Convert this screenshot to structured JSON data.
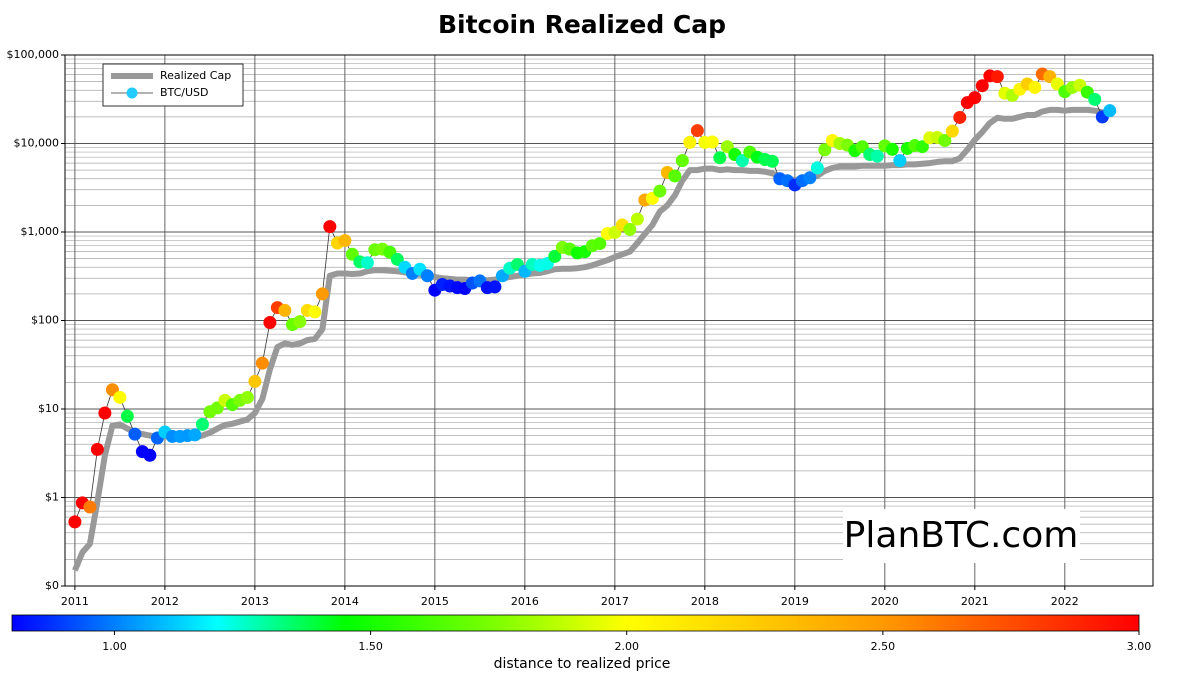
{
  "chart_data": {
    "type": "line",
    "title": "Bitcoin Realized Cap",
    "xlim": [
      2010.89,
      2022.98
    ],
    "xticks": [
      2011,
      2012,
      2013,
      2014,
      2015,
      2016,
      2017,
      2018,
      2019,
      2020,
      2021,
      2022
    ],
    "ylim": [
      0.1,
      100000
    ],
    "yscale": "log",
    "yticks": [
      {
        "value": 0.1,
        "label": "$0"
      },
      {
        "value": 1,
        "label": "$1"
      },
      {
        "value": 10,
        "label": "$10"
      },
      {
        "value": 100,
        "label": "$100"
      },
      {
        "value": 1000,
        "label": "$1,000"
      },
      {
        "value": 10000,
        "label": "$10,000"
      },
      {
        "value": 100000,
        "label": "$100,000"
      }
    ],
    "grid": true,
    "legend": "upper left",
    "watermark": "PlanBTC.com",
    "x": [
      2011,
      2011.083,
      2011.167,
      2011.25,
      2011.333,
      2011.417,
      2011.5,
      2011.583,
      2011.667,
      2011.75,
      2011.833,
      2011.917,
      2012,
      2012.083,
      2012.167,
      2012.25,
      2012.333,
      2012.417,
      2012.5,
      2012.583,
      2012.667,
      2012.75,
      2012.833,
      2012.917,
      2013,
      2013.083,
      2013.167,
      2013.25,
      2013.333,
      2013.417,
      2013.5,
      2013.583,
      2013.667,
      2013.75,
      2013.833,
      2013.917,
      2014,
      2014.083,
      2014.167,
      2014.25,
      2014.333,
      2014.417,
      2014.5,
      2014.583,
      2014.667,
      2014.75,
      2014.833,
      2014.917,
      2015,
      2015.083,
      2015.167,
      2015.25,
      2015.333,
      2015.417,
      2015.5,
      2015.583,
      2015.667,
      2015.75,
      2015.833,
      2015.917,
      2016,
      2016.083,
      2016.167,
      2016.25,
      2016.333,
      2016.417,
      2016.5,
      2016.583,
      2016.667,
      2016.75,
      2016.833,
      2016.917,
      2017,
      2017.083,
      2017.167,
      2017.25,
      2017.333,
      2017.417,
      2017.5,
      2017.583,
      2017.667,
      2017.75,
      2017.833,
      2017.917,
      2018,
      2018.083,
      2018.167,
      2018.25,
      2018.333,
      2018.417,
      2018.5,
      2018.583,
      2018.667,
      2018.75,
      2018.833,
      2018.917,
      2019,
      2019.083,
      2019.167,
      2019.25,
      2019.333,
      2019.417,
      2019.5,
      2019.583,
      2019.667,
      2019.75,
      2019.833,
      2019.917,
      2020,
      2020.083,
      2020.167,
      2020.25,
      2020.333,
      2020.417,
      2020.5,
      2020.583,
      2020.667,
      2020.75,
      2020.833,
      2020.917,
      2021,
      2021.083,
      2021.167,
      2021.25,
      2021.333,
      2021.417,
      2021.5,
      2021.583,
      2021.667,
      2021.75,
      2021.833,
      2021.917,
      2022,
      2022.083,
      2022.167,
      2022.25,
      2022.333,
      2022.417,
      2022.5
    ],
    "series": [
      {
        "name": "Realized Cap",
        "color": "#999999",
        "values": [
          0.15,
          0.24,
          0.3,
          0.9,
          3.0,
          6.5,
          6.7,
          6.0,
          5.5,
          5.2,
          5.0,
          4.9,
          4.9,
          4.8,
          4.7,
          4.8,
          4.8,
          5.0,
          5.4,
          6.0,
          6.6,
          6.8,
          7.2,
          7.6,
          9,
          13,
          28,
          50,
          55,
          53,
          55,
          60,
          62,
          80,
          320,
          340,
          340,
          335,
          340,
          360,
          370,
          370,
          365,
          360,
          350,
          340,
          330,
          320,
          310,
          300,
          295,
          290,
          290,
          285,
          285,
          285,
          290,
          300,
          310,
          320,
          330,
          340,
          345,
          360,
          380,
          385,
          385,
          390,
          400,
          420,
          450,
          480,
          520,
          560,
          600,
          750,
          950,
          1200,
          1700,
          2000,
          2600,
          3800,
          5000,
          5000,
          5200,
          5200,
          5000,
          5100,
          5000,
          5000,
          4900,
          4900,
          4800,
          4600,
          4200,
          3900,
          3900,
          3900,
          4100,
          4300,
          4900,
          5300,
          5500,
          5500,
          5500,
          5600,
          5600,
          5600,
          5600,
          5700,
          5700,
          5800,
          5800,
          5900,
          6000,
          6200,
          6300,
          6300,
          6800,
          8500,
          11000,
          13500,
          17000,
          19500,
          19000,
          19000,
          20000,
          21000,
          21000,
          23000,
          24000,
          24000,
          23500,
          24000,
          24000,
          24000,
          23500,
          22500,
          21500
        ]
      },
      {
        "name": "BTC/USD",
        "color": "#22ccff",
        "line_color": "#333333",
        "values": [
          0.53,
          0.87,
          0.78,
          3.5,
          9,
          16.5,
          13.5,
          8.3,
          5.2,
          3.3,
          3.0,
          4.7,
          5.5,
          4.9,
          4.9,
          5,
          5.1,
          6.7,
          9.3,
          10.3,
          12.5,
          11.2,
          12.5,
          13.5,
          20.5,
          33,
          95,
          140,
          130,
          90,
          97,
          130,
          125,
          200,
          1150,
          750,
          800,
          560,
          460,
          450,
          630,
          640,
          590,
          490,
          400,
          340,
          380,
          320,
          220,
          255,
          245,
          235,
          230,
          265,
          280,
          235,
          240,
          320,
          390,
          430,
          360,
          430,
          420,
          440,
          530,
          670,
          640,
          580,
          600,
          700,
          740,
          960,
          990,
          1200,
          1070,
          1400,
          2300,
          2400,
          2900,
          4700,
          4300,
          6400,
          10300,
          14000,
          10300,
          10400,
          6900,
          9200,
          7500,
          6400,
          8000,
          7000,
          6600,
          6300,
          4000,
          3800,
          3400,
          3800,
          4100,
          5300,
          8500,
          10800,
          10000,
          9600,
          8300,
          9200,
          7500,
          7200,
          9400,
          8600,
          6400,
          8800,
          9500,
          9200,
          11600,
          11700,
          10800,
          13800,
          19700,
          29000,
          33000,
          45000,
          58000,
          57000,
          37000,
          35000,
          41000,
          47000,
          43000,
          61000,
          57000,
          47000,
          38500,
          43000,
          45500,
          38000,
          31500,
          20000,
          23500
        ]
      }
    ],
    "colorbar": {
      "label": "distance to realized price",
      "lim": [
        0.8,
        3.0
      ],
      "ticks": [
        {
          "value": 1,
          "label": "1.00"
        },
        {
          "value": 1.5,
          "label": "1.50"
        },
        {
          "value": 2,
          "label": "2.00"
        },
        {
          "value": 2.5,
          "label": "2.50"
        },
        {
          "value": 3,
          "label": "3.00"
        }
      ],
      "stops": [
        [
          0.8,
          "#0000ff"
        ],
        [
          1.2,
          "#00ffff"
        ],
        [
          1.45,
          "#00ff00"
        ],
        [
          1.75,
          "#80ff00"
        ],
        [
          2.0,
          "#ffff00"
        ],
        [
          2.5,
          "#ff9900"
        ],
        [
          3.0,
          "#ff0000"
        ]
      ]
    }
  }
}
